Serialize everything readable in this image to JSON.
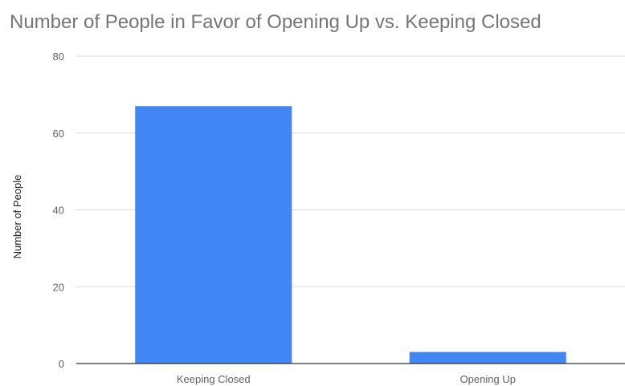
{
  "chart_data": {
    "type": "bar",
    "title": "Number of People in Favor of Opening Up vs. Keeping Closed",
    "xlabel": "",
    "ylabel": "Number of People",
    "categories": [
      "Keeping Closed",
      "Opening Up"
    ],
    "values": [
      67,
      3
    ],
    "ylim": [
      0,
      80
    ],
    "yticks": [
      0,
      20,
      40,
      60,
      80
    ],
    "grid": true,
    "legend": "none",
    "colors": {
      "bar": "#4285f4",
      "grid": "#d9d9d9",
      "axis": "#333333",
      "tick_text": "#616161",
      "title_text": "#757575"
    }
  }
}
